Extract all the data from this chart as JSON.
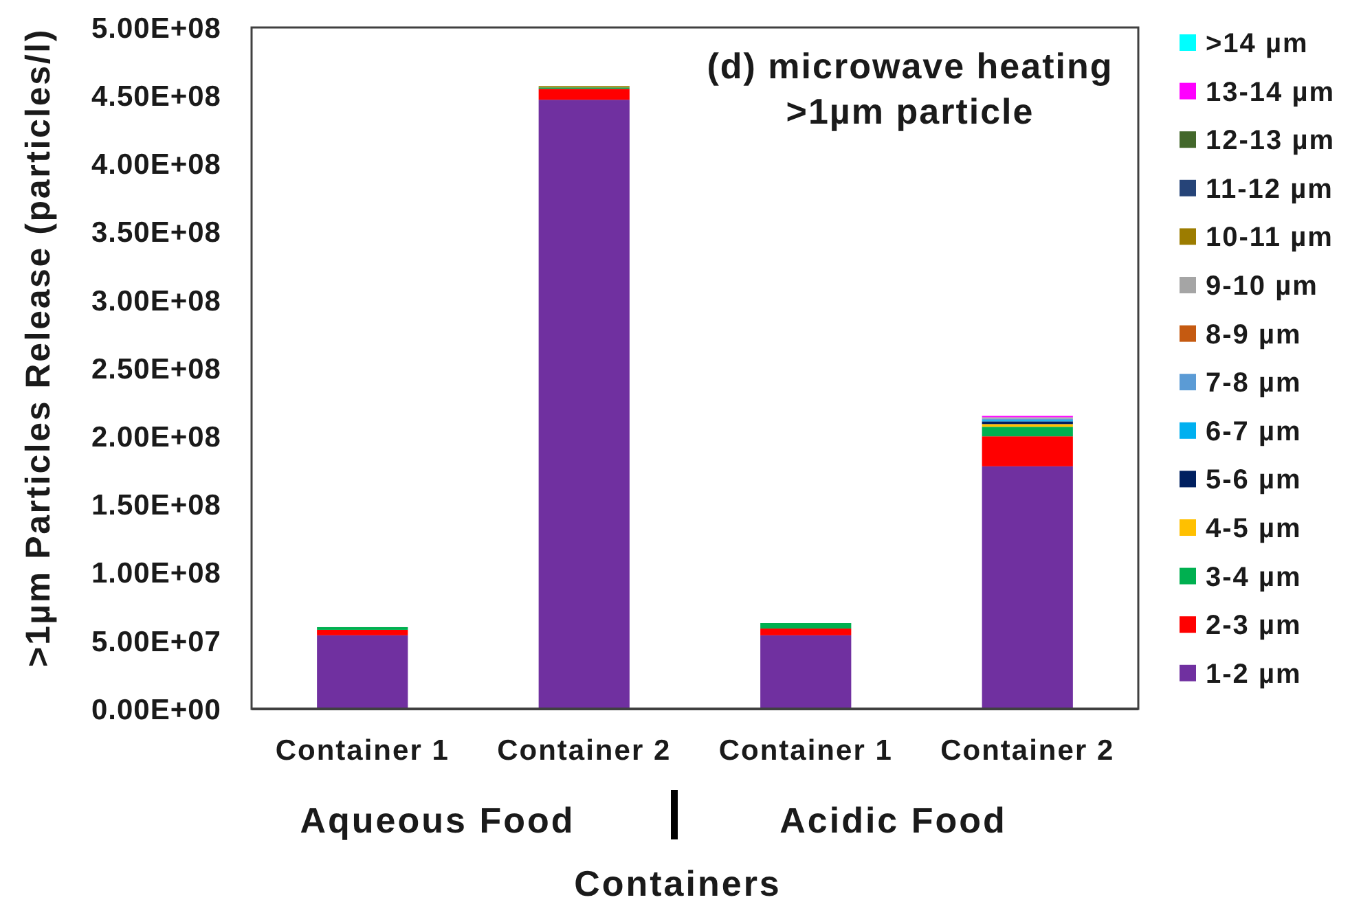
{
  "chart_data": {
    "type": "bar",
    "title": "(d) microwave heating",
    "subtitle": ">1µm particle",
    "xlabel": "Containers",
    "ylabel": ">1µm Particles Release (particles/l)",
    "categories": [
      "Container 1",
      "Container 2",
      "Container 1",
      "Container 2"
    ],
    "annotations": [
      "Aqueous Food",
      "Acidic Food"
    ],
    "stacked": true,
    "legend": "right",
    "grid": false,
    "ylim": [
      0,
      500000000
    ],
    "yticks": [
      {
        "value": 0,
        "label": "0.00E+00"
      },
      {
        "value": 50000000,
        "label": "5.00E+07"
      },
      {
        "value": 100000000,
        "label": "1.00E+08"
      },
      {
        "value": 150000000,
        "label": "1.50E+08"
      },
      {
        "value": 200000000,
        "label": "2.00E+08"
      },
      {
        "value": 250000000,
        "label": "2.50E+08"
      },
      {
        "value": 300000000,
        "label": "3.00E+08"
      },
      {
        "value": 350000000,
        "label": "3.50E+08"
      },
      {
        "value": 400000000,
        "label": "4.00E+08"
      },
      {
        "value": 450000000,
        "label": "4.50E+08"
      },
      {
        "value": 500000000,
        "label": "5.00E+08"
      }
    ],
    "series": [
      {
        "name": "1-2 µm",
        "color": "#7030a0",
        "values": [
          54000000,
          447000000,
          54000000,
          178000000
        ]
      },
      {
        "name": "2-3 µm",
        "color": "#ff0000",
        "values": [
          4000000,
          8000000,
          5000000,
          22000000
        ]
      },
      {
        "name": "3-4 µm",
        "color": "#00b050",
        "values": [
          2000000,
          1000000,
          4000000,
          7000000
        ]
      },
      {
        "name": "4-5 µm",
        "color": "#ffc000",
        "values": [
          0,
          0,
          0,
          2000000
        ]
      },
      {
        "name": "5-6 µm",
        "color": "#002060",
        "values": [
          0,
          0,
          0,
          2000000
        ]
      },
      {
        "name": "6-7 µm",
        "color": "#00b0f0",
        "values": [
          0,
          0,
          0,
          1000000
        ]
      },
      {
        "name": "7-8 µm",
        "color": "#5b9bd5",
        "values": [
          0,
          0,
          0,
          1000000
        ]
      },
      {
        "name": "8-9 µm",
        "color": "#c55a11",
        "values": [
          0,
          0,
          0,
          0
        ]
      },
      {
        "name": "9-10 µm",
        "color": "#a5a5a5",
        "values": [
          0,
          0,
          0,
          1000000
        ]
      },
      {
        "name": "10-11 µm",
        "color": "#9c7c00",
        "values": [
          0,
          1000000,
          0,
          0
        ]
      },
      {
        "name": "11-12 µm",
        "color": "#264478",
        "values": [
          0,
          0,
          0,
          0
        ]
      },
      {
        "name": "12-13 µm",
        "color": "#43682b",
        "values": [
          0,
          0,
          0,
          0
        ]
      },
      {
        "name": "13-14 µm",
        "color": "#ff00ff",
        "values": [
          0,
          0,
          0,
          1000000
        ]
      },
      {
        "name": ">14 µm",
        "color": "#00ffff",
        "values": [
          0,
          0,
          0,
          0
        ]
      }
    ]
  }
}
